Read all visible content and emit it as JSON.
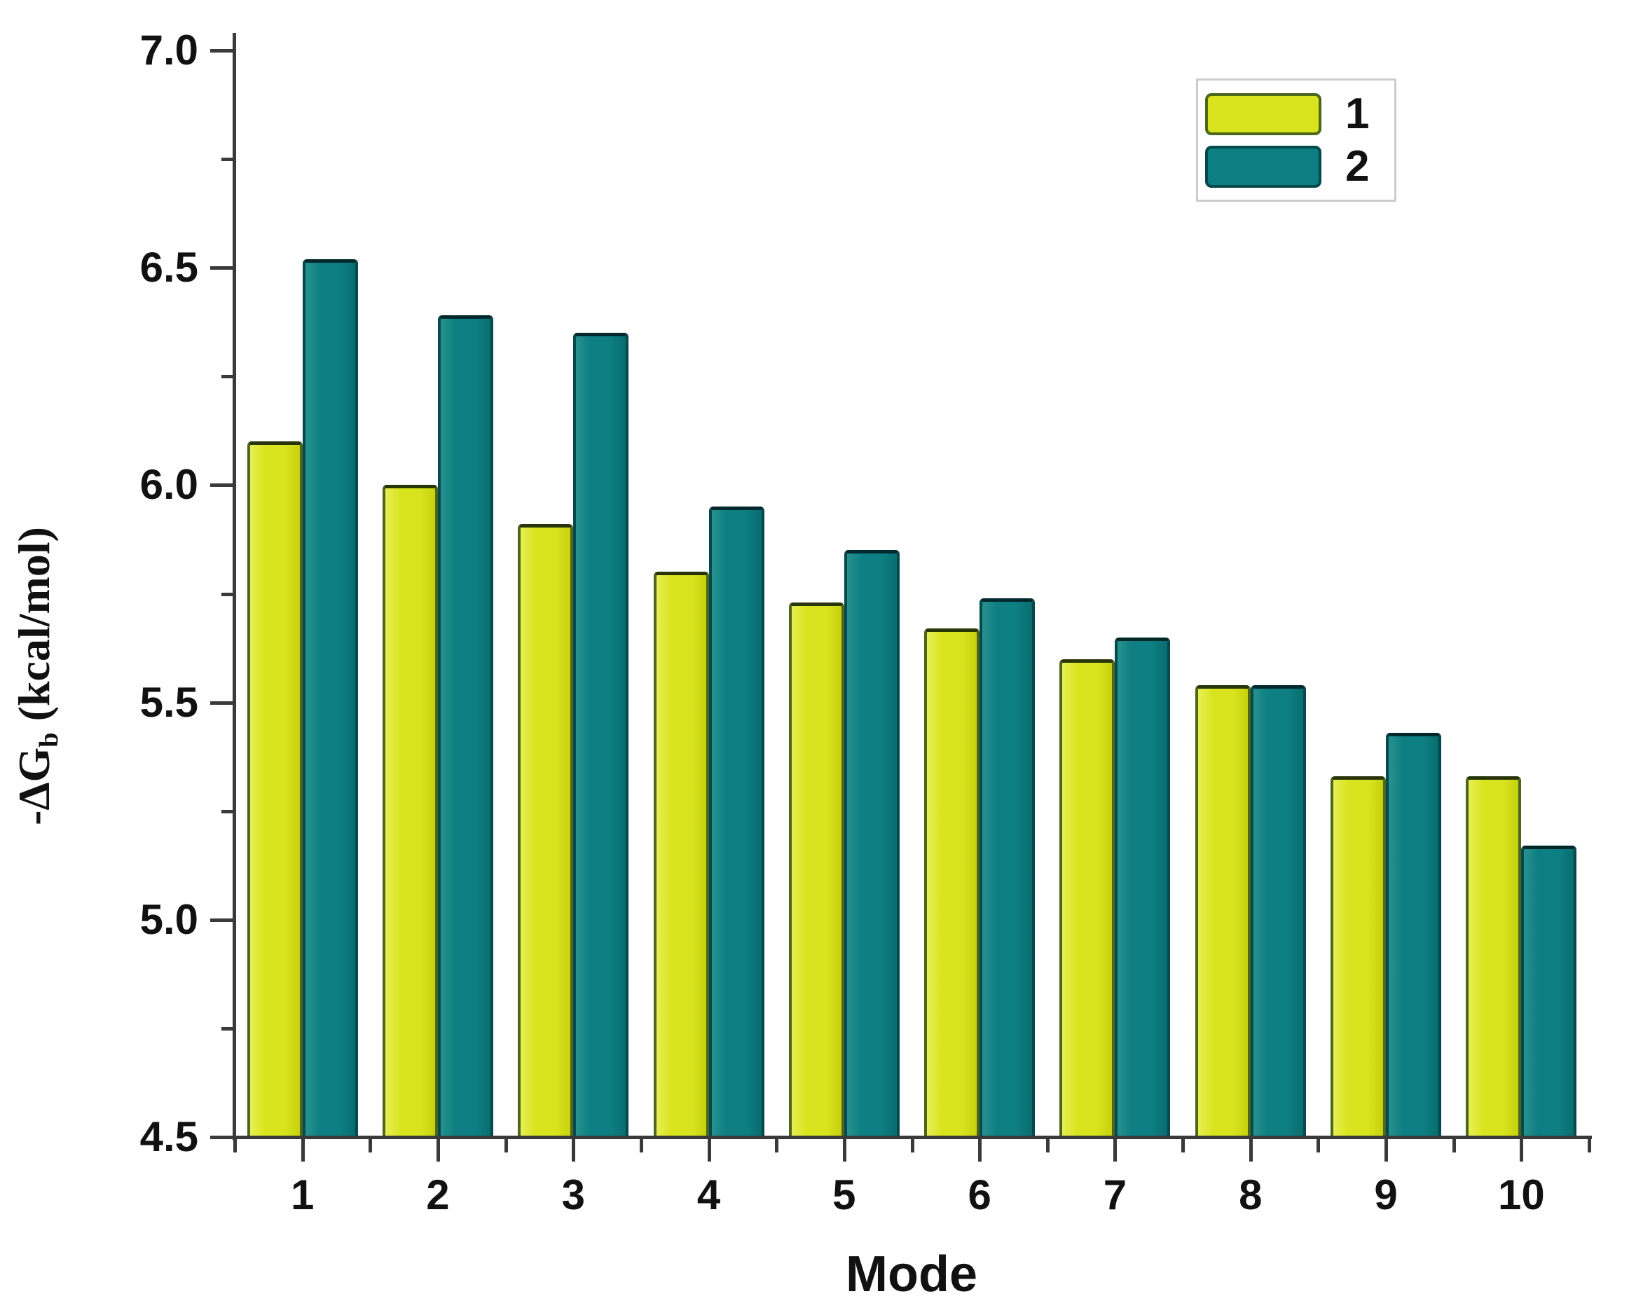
{
  "chart_data": {
    "type": "bar",
    "title": "",
    "xlabel": "Mode",
    "ylabel": "-ΔG_b (kcal/mol)",
    "ylabel_parts": {
      "prefix": "-ΔG",
      "subscript": "b",
      "suffix": " (kcal/mol)"
    },
    "categories": [
      "1",
      "2",
      "3",
      "4",
      "5",
      "6",
      "7",
      "8",
      "9",
      "10"
    ],
    "series": [
      {
        "name": "1",
        "values": [
          6.1,
          6.0,
          5.91,
          5.8,
          5.73,
          5.67,
          5.6,
          5.54,
          5.33,
          5.33
        ],
        "fill_color": "#d9e41e",
        "fill_light": "#e7ef55",
        "fill_dark": "#c6d20e",
        "edge_color": "#4d661c",
        "top_edge_color": "#273509"
      },
      {
        "name": "2",
        "values": [
          6.52,
          6.39,
          6.35,
          5.95,
          5.85,
          5.74,
          5.65,
          5.54,
          5.43,
          5.17
        ],
        "fill_color": "#0d7e81",
        "fill_light": "#27918f",
        "fill_dark": "#086d70",
        "edge_color": "#06494d",
        "top_edge_color": "#02282c"
      }
    ],
    "ylim": [
      4.5,
      7.0
    ],
    "y_major_ticks": [
      "7.0",
      "6.5",
      "6.0",
      "5.5",
      "5.0",
      "4.5"
    ],
    "y_minor_step": 0.25,
    "x_minor_ticks_at_group_boundaries": true,
    "grid": false,
    "legend_position": "top-right",
    "axis_color": "#3a3a3a",
    "background_color": "#ffffff"
  }
}
